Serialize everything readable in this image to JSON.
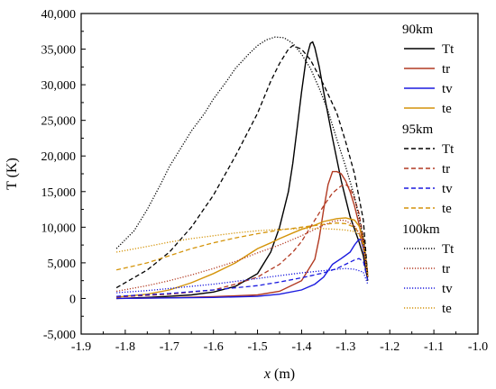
{
  "chart_data": {
    "type": "line",
    "xlabel_var": "x",
    "xlabel_unit": " (m)",
    "ylabel": "T (K)",
    "xlim": [
      -1.9,
      -1.0
    ],
    "ylim": [
      -5000,
      40000
    ],
    "xticks": [
      "-1.9",
      "-1.8",
      "-1.7",
      "-1.6",
      "-1.5",
      "-1.4",
      "-1.3",
      "-1.2",
      "-1.1",
      "-1.0"
    ],
    "yticks": [
      "-5,000",
      "0",
      "5,000",
      "10,000",
      "15,000",
      "20,000",
      "25,000",
      "30,000",
      "35,000",
      "40,000"
    ],
    "ytick_values": [
      -5000,
      0,
      5000,
      10000,
      15000,
      20000,
      25000,
      30000,
      35000,
      40000
    ],
    "xtick_values": [
      -1.9,
      -1.8,
      -1.7,
      -1.6,
      -1.5,
      -1.4,
      -1.3,
      -1.2,
      -1.1,
      -1.0
    ],
    "grid": false,
    "legend_position": "right",
    "legend_groups": [
      {
        "name": "90km",
        "linestyle": "solid"
      },
      {
        "name": "95km",
        "linestyle": "dashed"
      },
      {
        "name": "100km",
        "linestyle": "dotted"
      }
    ],
    "series_labels": [
      "Tt",
      "tr",
      "tv",
      "te"
    ],
    "colors": {
      "Tt": "#000000",
      "tr": "#b23a22",
      "tv": "#1a1adf",
      "te": "#d4940a"
    },
    "series": [
      {
        "name": "Tt",
        "group": "90km",
        "x": [
          -1.82,
          -1.75,
          -1.7,
          -1.65,
          -1.6,
          -1.55,
          -1.5,
          -1.47,
          -1.45,
          -1.43,
          -1.42,
          -1.41,
          -1.4,
          -1.39,
          -1.38,
          -1.375,
          -1.37,
          -1.36,
          -1.35,
          -1.33,
          -1.31,
          -1.29,
          -1.27,
          -1.26,
          -1.25
        ],
        "y": [
          0,
          150,
          300,
          500,
          900,
          1700,
          3500,
          6500,
          10000,
          15000,
          19000,
          24000,
          29000,
          33500,
          35800,
          36000,
          35200,
          32500,
          29000,
          22500,
          16500,
          11500,
          8000,
          6000,
          2500
        ]
      },
      {
        "name": "tr",
        "group": "90km",
        "x": [
          -1.82,
          -1.7,
          -1.6,
          -1.5,
          -1.45,
          -1.4,
          -1.37,
          -1.36,
          -1.35,
          -1.34,
          -1.33,
          -1.32,
          -1.31,
          -1.3,
          -1.29,
          -1.28,
          -1.27,
          -1.26,
          -1.25
        ],
        "y": [
          0,
          100,
          250,
          500,
          1000,
          2500,
          5500,
          8500,
          12500,
          16000,
          17800,
          17800,
          17500,
          16500,
          15000,
          13000,
          10500,
          7500,
          3000
        ]
      },
      {
        "name": "tv",
        "group": "90km",
        "x": [
          -1.82,
          -1.7,
          -1.6,
          -1.5,
          -1.45,
          -1.4,
          -1.37,
          -1.35,
          -1.33,
          -1.31,
          -1.29,
          -1.28,
          -1.27,
          -1.265,
          -1.26,
          -1.25
        ],
        "y": [
          0,
          80,
          150,
          300,
          600,
          1200,
          2000,
          3000,
          4800,
          5600,
          6500,
          7500,
          8300,
          8200,
          7000,
          3000
        ]
      },
      {
        "name": "te",
        "group": "90km",
        "x": [
          -1.82,
          -1.75,
          -1.7,
          -1.65,
          -1.6,
          -1.55,
          -1.52,
          -1.5,
          -1.47,
          -1.45,
          -1.42,
          -1.4,
          -1.37,
          -1.35,
          -1.32,
          -1.3,
          -1.28,
          -1.27,
          -1.26,
          -1.25
        ],
        "y": [
          200,
          600,
          1200,
          2200,
          3500,
          5000,
          6200,
          7000,
          7800,
          8400,
          9200,
          9700,
          10300,
          10800,
          11200,
          11300,
          11000,
          10200,
          8500,
          3500
        ]
      },
      {
        "name": "Tt",
        "group": "95km",
        "x": [
          -1.82,
          -1.75,
          -1.7,
          -1.65,
          -1.6,
          -1.55,
          -1.5,
          -1.47,
          -1.45,
          -1.43,
          -1.42,
          -1.4,
          -1.38,
          -1.35,
          -1.32,
          -1.3,
          -1.28,
          -1.26,
          -1.25
        ],
        "y": [
          1500,
          4000,
          6500,
          10000,
          14500,
          20000,
          26000,
          30500,
          33000,
          35000,
          35500,
          35000,
          33500,
          30000,
          26000,
          22000,
          17500,
          11000,
          3000
        ]
      },
      {
        "name": "tr",
        "group": "95km",
        "x": [
          -1.82,
          -1.7,
          -1.6,
          -1.55,
          -1.5,
          -1.45,
          -1.42,
          -1.4,
          -1.37,
          -1.35,
          -1.33,
          -1.31,
          -1.3,
          -1.29,
          -1.28,
          -1.27,
          -1.26,
          -1.25
        ],
        "y": [
          200,
          600,
          1200,
          2000,
          3000,
          4800,
          6500,
          8000,
          11000,
          13000,
          14800,
          15800,
          16000,
          15500,
          14000,
          12000,
          8500,
          3000
        ]
      },
      {
        "name": "tv",
        "group": "95km",
        "x": [
          -1.82,
          -1.7,
          -1.6,
          -1.5,
          -1.45,
          -1.4,
          -1.35,
          -1.32,
          -1.3,
          -1.28,
          -1.27,
          -1.26,
          -1.25
        ],
        "y": [
          300,
          700,
          1200,
          1800,
          2300,
          2900,
          3600,
          4200,
          4800,
          5400,
          5600,
          5200,
          2500
        ]
      },
      {
        "name": "te",
        "group": "95km",
        "x": [
          -1.82,
          -1.75,
          -1.7,
          -1.65,
          -1.6,
          -1.55,
          -1.5,
          -1.45,
          -1.4,
          -1.35,
          -1.32,
          -1.3,
          -1.28,
          -1.27,
          -1.26,
          -1.25
        ],
        "y": [
          4000,
          5000,
          6000,
          7000,
          7800,
          8500,
          9100,
          9600,
          10000,
          10400,
          10600,
          10500,
          10000,
          9200,
          7500,
          3000
        ]
      },
      {
        "name": "Tt",
        "group": "100km",
        "x": [
          -1.82,
          -1.78,
          -1.75,
          -1.72,
          -1.7,
          -1.67,
          -1.65,
          -1.62,
          -1.6,
          -1.57,
          -1.55,
          -1.52,
          -1.5,
          -1.48,
          -1.46,
          -1.44,
          -1.42,
          -1.4,
          -1.38,
          -1.36,
          -1.34,
          -1.32,
          -1.3,
          -1.28,
          -1.26,
          -1.25
        ],
        "y": [
          7000,
          9500,
          12500,
          16000,
          18500,
          21500,
          23500,
          26000,
          28000,
          30500,
          32300,
          34300,
          35500,
          36300,
          36700,
          36600,
          35800,
          34300,
          32300,
          29500,
          26300,
          22300,
          18500,
          14300,
          8500,
          3000
        ]
      },
      {
        "name": "tr",
        "group": "100km",
        "x": [
          -1.82,
          -1.75,
          -1.7,
          -1.65,
          -1.6,
          -1.55,
          -1.5,
          -1.45,
          -1.4,
          -1.37,
          -1.35,
          -1.33,
          -1.31,
          -1.3,
          -1.28,
          -1.27,
          -1.26,
          -1.25
        ],
        "y": [
          1000,
          1800,
          2500,
          3300,
          4200,
          5200,
          6400,
          7500,
          8800,
          9700,
          10300,
          10800,
          11000,
          10900,
          10200,
          9200,
          7000,
          3000
        ]
      },
      {
        "name": "tv",
        "group": "100km",
        "x": [
          -1.82,
          -1.75,
          -1.7,
          -1.65,
          -1.6,
          -1.55,
          -1.5,
          -1.45,
          -1.4,
          -1.35,
          -1.32,
          -1.3,
          -1.28,
          -1.26,
          -1.25
        ],
        "y": [
          800,
          1100,
          1400,
          1700,
          2000,
          2400,
          2800,
          3200,
          3600,
          3900,
          4100,
          4200,
          4100,
          3700,
          2000
        ]
      },
      {
        "name": "te",
        "group": "100km",
        "x": [
          -1.82,
          -1.75,
          -1.7,
          -1.65,
          -1.6,
          -1.55,
          -1.5,
          -1.45,
          -1.4,
          -1.35,
          -1.32,
          -1.3,
          -1.28,
          -1.27,
          -1.26,
          -1.25
        ],
        "y": [
          6500,
          7300,
          7900,
          8400,
          8800,
          9200,
          9500,
          9700,
          9800,
          9800,
          9700,
          9600,
          9400,
          9000,
          7500,
          3000
        ]
      }
    ]
  }
}
